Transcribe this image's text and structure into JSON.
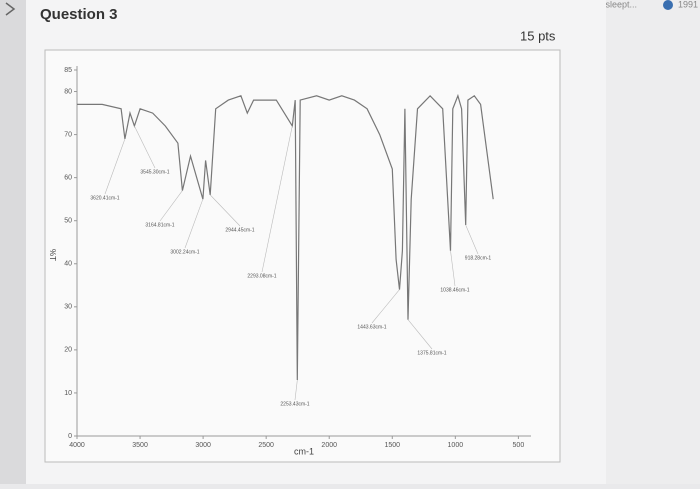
{
  "browser": {
    "url_text": "ttps://www.sleept...",
    "badge": "1991"
  },
  "question": {
    "title": "Question 3",
    "points": "15 pts"
  },
  "chart_data": {
    "type": "line",
    "x": [
      4000,
      3800,
      3650,
      3620,
      3580,
      3545,
      3500,
      3400,
      3300,
      3200,
      3164,
      3100,
      3002,
      2980,
      2944,
      2900,
      2800,
      2700,
      2650,
      2600,
      2500,
      2420,
      2293,
      2270,
      2253,
      2230,
      2100,
      2000,
      1900,
      1800,
      1700,
      1600,
      1500,
      1470,
      1443,
      1420,
      1400,
      1375,
      1350,
      1300,
      1200,
      1100,
      1038,
      1020,
      980,
      950,
      918,
      900,
      850,
      800,
      750,
      700
    ],
    "values": [
      77,
      77,
      76,
      69,
      75,
      72,
      76,
      75,
      72,
      68,
      57,
      65,
      55,
      64,
      56,
      76,
      78,
      79,
      75,
      78,
      78,
      78,
      72,
      78,
      13,
      78,
      79,
      78,
      79,
      78,
      76,
      70,
      62,
      41,
      34,
      43,
      76,
      27,
      55,
      76,
      79,
      76,
      43,
      76,
      79,
      76,
      49,
      78,
      79,
      77,
      66,
      55
    ],
    "color": "#777777",
    "xlim": [
      4000,
      400
    ],
    "xticks": [
      4000,
      3500,
      3000,
      2500,
      2000,
      1500,
      1000,
      500
    ],
    "ylim": [
      0,
      85
    ],
    "yticks": [
      0,
      10,
      20,
      30,
      40,
      50,
      60,
      70,
      80,
      85
    ],
    "xlabel": "cm-1",
    "ylabel": "%T",
    "annotations": [
      {
        "text": "3620.41cm-1",
        "x": 3620
      },
      {
        "text": "3545.30cm-1",
        "x": 3545
      },
      {
        "text": "3164.81cm-1",
        "x": 3164
      },
      {
        "text": "3002.24cm-1",
        "x": 3002
      },
      {
        "text": "2944.45cm-1",
        "x": 2944
      },
      {
        "text": "2293.08cm-1",
        "x": 2293
      },
      {
        "text": "2253.43cm-1",
        "x": 2253
      },
      {
        "text": "1443.63cm-1",
        "x": 1443
      },
      {
        "text": "1375.81cm-1",
        "x": 1375
      },
      {
        "text": "1038.46cm-1",
        "x": 1038
      },
      {
        "text": "918.28cm-1",
        "x": 918
      }
    ]
  }
}
